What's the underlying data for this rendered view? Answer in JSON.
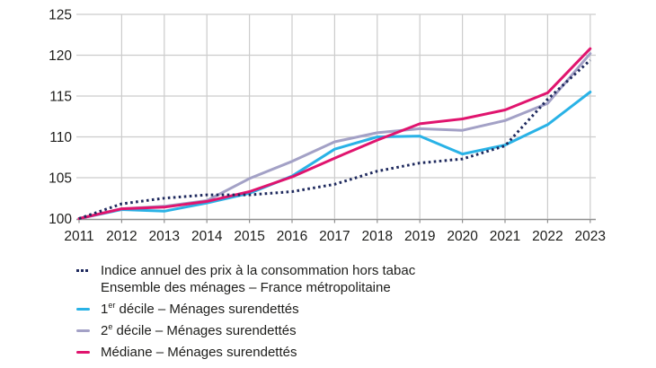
{
  "chart_data": {
    "type": "line",
    "title": "",
    "xlabel": "",
    "ylabel": "",
    "x": [
      2011,
      2012,
      2013,
      2014,
      2015,
      2016,
      2017,
      2018,
      2019,
      2020,
      2021,
      2022,
      2023
    ],
    "ylim": [
      100,
      125
    ],
    "yticks": [
      100,
      105,
      110,
      115,
      120,
      125
    ],
    "grid": true,
    "legend_position": "bottom-left",
    "series": [
      {
        "id": "cpi",
        "name": "Indice annuel des prix à la consommation hors tabac – Ensemble des ménages – France métropolitaine",
        "color": "#1f2a5e",
        "style": "dotted",
        "values": [
          100,
          101.8,
          102.5,
          102.9,
          102.9,
          103.3,
          104.2,
          105.8,
          106.8,
          107.3,
          108.9,
          114.6,
          119.4
        ]
      },
      {
        "id": "decile-1",
        "name": "1ᵉʳ décile – Ménages surendettés",
        "color": "#29b2e6",
        "style": "solid",
        "values": [
          100,
          101.1,
          100.9,
          101.9,
          103.1,
          105.2,
          108.5,
          110.0,
          110.1,
          107.9,
          109.0,
          111.5,
          115.5
        ]
      },
      {
        "id": "decile-2",
        "name": "2ᵉ décile – Ménages surendettés",
        "color": "#a3a1c6",
        "style": "solid",
        "values": [
          100,
          101.2,
          101.5,
          102.2,
          104.9,
          107.0,
          109.4,
          110.5,
          111.0,
          110.8,
          112.0,
          114.1,
          120.2
        ]
      },
      {
        "id": "mediane",
        "name": "Médiane – Ménages surendettés",
        "color": "#e0146e",
        "style": "solid",
        "values": [
          100,
          101.2,
          101.4,
          102.1,
          103.3,
          105.1,
          107.4,
          109.6,
          111.6,
          112.2,
          113.3,
          115.4,
          120.8
        ]
      }
    ]
  },
  "legend": {
    "items": [
      {
        "id": "cpi",
        "marker": "dotted",
        "color": "#1f2a5e",
        "lines": [
          [
            {
              "t": "Indice annuel des prix à la consommation hors tabac"
            }
          ],
          [
            {
              "t": "Ensemble des ménages – France métropolitaine"
            }
          ]
        ]
      },
      {
        "id": "decile-1",
        "marker": "line",
        "color": "#29b2e6",
        "lines": [
          [
            {
              "t": "1"
            },
            {
              "t": "er",
              "sup": true
            },
            {
              "t": " décile – Ménages surendettés"
            }
          ]
        ]
      },
      {
        "id": "decile-2",
        "marker": "line",
        "color": "#a3a1c6",
        "lines": [
          [
            {
              "t": "2"
            },
            {
              "t": "e",
              "sup": true
            },
            {
              "t": " décile – Ménages surendettés"
            }
          ]
        ]
      },
      {
        "id": "mediane",
        "marker": "line",
        "color": "#e0146e",
        "lines": [
          [
            {
              "t": "Médiane – Ménages surendettés"
            }
          ]
        ]
      }
    ]
  },
  "colors": {
    "grid": "#cccccc",
    "axis": "#8f8f8f",
    "text": "#1d1d1b",
    "background": "#ffffff"
  }
}
